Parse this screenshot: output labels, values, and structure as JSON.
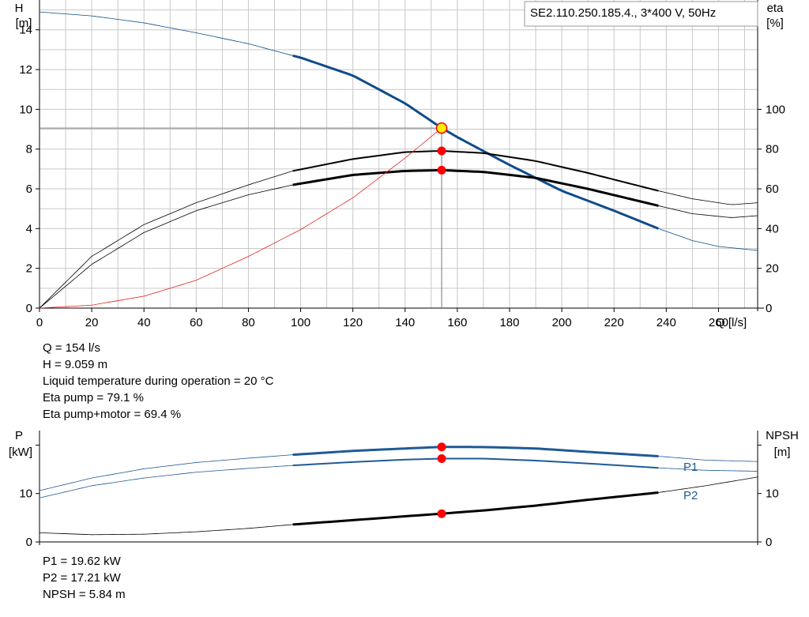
{
  "title_box": "SE2.110.250.185.4., 3*400 V, 50Hz",
  "colors": {
    "h_curve": "#0f4c8a",
    "eta_curve": "#000000",
    "system_curve": "#e8231f",
    "point": "#ff0000",
    "duty_point_fill": "#ffee00",
    "grid": "#c8c8c8",
    "p_curve": "#1f5a96"
  },
  "chart_data": [
    {
      "type": "line",
      "axes": {
        "x": {
          "label": "Q [l/s]",
          "range": [
            0,
            275
          ],
          "ticks": [
            0,
            20,
            40,
            60,
            80,
            100,
            120,
            140,
            160,
            180,
            200,
            220,
            240,
            260
          ]
        },
        "y_left": {
          "label_top": "H",
          "label_unit": "[m]",
          "range": [
            0,
            15.5
          ],
          "ticks": [
            0,
            2,
            4,
            6,
            8,
            10,
            12,
            14
          ]
        },
        "y_right": {
          "label_top": "eta",
          "label_unit": "[%]",
          "range": [
            0,
            155
          ],
          "ticks": [
            0,
            20,
            40,
            60,
            80,
            100
          ]
        }
      },
      "grid": true,
      "series": [
        {
          "axis": "left",
          "x": [
            0,
            20,
            40,
            60,
            80,
            97,
            100,
            120,
            140,
            154,
            160,
            180,
            200,
            220,
            237,
            250,
            260,
            275
          ],
          "y": [
            14.9,
            14.7,
            14.35,
            13.85,
            13.3,
            12.7,
            12.6,
            11.7,
            10.3,
            9.06,
            8.6,
            7.2,
            5.9,
            4.9,
            4.0,
            3.4,
            3.1,
            2.9
          ]
        },
        {
          "axis": "right",
          "x": [
            0,
            20,
            40,
            60,
            80,
            97,
            120,
            140,
            154,
            170,
            190,
            210,
            237,
            250,
            265,
            275
          ],
          "y": [
            0,
            22,
            38,
            49,
            57,
            62,
            67,
            69,
            69.4,
            68.5,
            65.5,
            60,
            51.5,
            47.5,
            45.5,
            46.5
          ]
        },
        {
          "axis": "right",
          "x": [
            0,
            20,
            40,
            60,
            80,
            97,
            120,
            140,
            154,
            170,
            190,
            210,
            237,
            250,
            265,
            275
          ],
          "y": [
            0,
            26,
            42,
            53,
            62,
            69,
            75,
            78.5,
            79.1,
            78,
            74,
            68,
            59,
            55,
            52,
            53
          ]
        },
        {
          "axis": "left",
          "x": [
            0,
            20,
            40,
            60,
            80,
            100,
            120,
            140,
            154
          ],
          "y": [
            0,
            0.15,
            0.6,
            1.4,
            2.6,
            3.95,
            5.55,
            7.55,
            9.06
          ]
        }
      ],
      "duty_point": {
        "Q": 154,
        "H": 9.059,
        "eta_pump": 79.1,
        "eta_total": 69.4
      }
    },
    {
      "type": "line",
      "axes": {
        "x": {
          "range": [
            0,
            275
          ]
        },
        "y_left": {
          "label_top": "P",
          "label_unit": "[kW]",
          "range": [
            0,
            23
          ],
          "ticks": [
            0,
            10
          ]
        },
        "y_right": {
          "label_top": "NPSH",
          "label_unit": "[m]",
          "range": [
            0,
            23
          ],
          "ticks": [
            0,
            10
          ]
        }
      },
      "grid": false,
      "series": [
        {
          "name": "P1",
          "x": [
            0,
            20,
            40,
            60,
            80,
            97,
            120,
            140,
            154,
            170,
            190,
            210,
            237,
            255,
            275
          ],
          "y": [
            10.6,
            13.2,
            15.1,
            16.4,
            17.3,
            18.0,
            18.8,
            19.3,
            19.62,
            19.6,
            19.3,
            18.6,
            17.7,
            16.9,
            16.6
          ]
        },
        {
          "name": "P2",
          "x": [
            0,
            20,
            40,
            60,
            80,
            97,
            120,
            140,
            154,
            170,
            190,
            210,
            237,
            255,
            275
          ],
          "y": [
            9.1,
            11.6,
            13.2,
            14.4,
            15.2,
            15.8,
            16.5,
            17.0,
            17.21,
            17.2,
            16.8,
            16.2,
            15.3,
            14.8,
            14.6
          ]
        },
        {
          "x": [
            0,
            20,
            40,
            60,
            80,
            97,
            120,
            140,
            154,
            170,
            190,
            210,
            237,
            255,
            275
          ],
          "y": [
            1.9,
            1.5,
            1.6,
            2.1,
            2.8,
            3.6,
            4.5,
            5.3,
            5.84,
            6.5,
            7.5,
            8.7,
            10.2,
            11.6,
            13.4
          ]
        }
      ],
      "duty_point": {
        "P1": 19.62,
        "P2": 17.21,
        "NPSH": 5.84
      }
    }
  ],
  "info_top": [
    "Q = 154 l/s",
    "H = 9.059 m",
    "Liquid temperature during operation = 20 °C",
    "Eta pump = 79.1 %",
    "Eta pump+motor = 69.4 %"
  ],
  "info_bottom": [
    "P1 = 19.62 kW",
    "P2 = 17.21 kW",
    "NPSH = 5.84 m"
  ]
}
